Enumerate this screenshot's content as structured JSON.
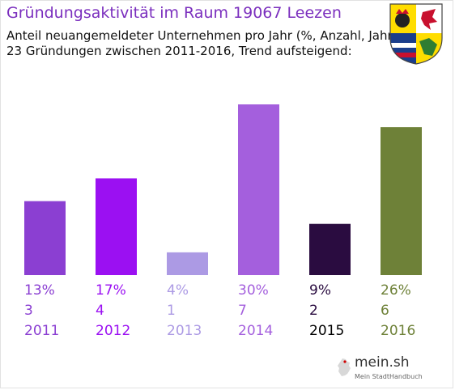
{
  "header": {
    "title": "Gründungsaktivität im Raum 19067 Leezen",
    "subtitle_line1": "Anteil neuangemeldeter Unternehmen pro Jahr (%, Anzahl, Jahr)",
    "subtitle_line2": "23 Gründungen zwischen 2011-2016, Trend aufsteigend:"
  },
  "crest": {
    "icon": "coat-of-arms-mecklenburg-vorpommern"
  },
  "logo": {
    "text": "mein.sh",
    "tagline": "Mein StadtHandbuch",
    "icon": "germany-map-icon"
  },
  "chart_data": {
    "type": "bar",
    "categories": [
      "2011",
      "2012",
      "2013",
      "2014",
      "2015",
      "2016"
    ],
    "values": [
      13,
      17,
      4,
      30,
      9,
      26
    ],
    "percent_labels": [
      "13%",
      "17%",
      "4%",
      "30%",
      "9%",
      "26%"
    ],
    "counts": [
      "3",
      "4",
      "1",
      "7",
      "2",
      "6"
    ],
    "colors": [
      "#8b3fd2",
      "#9b10f2",
      "#ac9ae4",
      "#a45fdd",
      "#2a0c40",
      "#6e8138"
    ],
    "label_colors": [
      "#8b3fd2",
      "#9b10f2",
      "#ac9ae4",
      "#a45fdd",
      "#2a0c40",
      "#6e8138"
    ],
    "year_label_colors": [
      "#8b3fd2",
      "#9b10f2",
      "#ac9ae4",
      "#a45fdd",
      "#000000",
      "#6e8138"
    ],
    "ylim": [
      0,
      30
    ],
    "grid": false,
    "legend": "none"
  }
}
